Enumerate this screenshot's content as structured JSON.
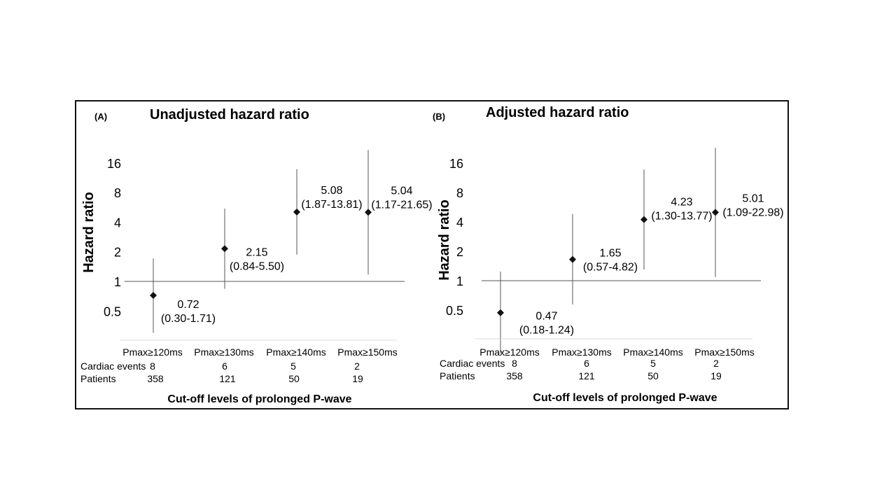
{
  "chart_data": [
    {
      "type": "scatter",
      "panel_label": "(A)",
      "title": "Unadjusted hazard ratio",
      "xlabel": "Cut-off levels of prolonged P-wave",
      "ylabel": "Hazard ratio",
      "y_scale": "log2",
      "ylim": [
        0.32,
        24
      ],
      "yticks": [
        0.5,
        1,
        2,
        4,
        8,
        16
      ],
      "yticklabels": [
        "0.5",
        "1",
        "2",
        "4",
        "8",
        "16"
      ],
      "reference_line": 1,
      "categories": [
        "Pmax≥120ms",
        "Pmax≥130ms",
        "Pmax≥140ms",
        "Pmax≥150ms"
      ],
      "hr": [
        0.72,
        2.15,
        5.08,
        5.04
      ],
      "ci_lower": [
        0.3,
        0.84,
        1.87,
        1.17
      ],
      "ci_upper": [
        1.71,
        5.5,
        13.81,
        21.65
      ],
      "hr_labels": [
        "0.72",
        "2.15",
        "5.08",
        "5.04"
      ],
      "ci_labels": [
        "(0.30-1.71)",
        "(0.84-5.50)",
        "(1.87-13.81)",
        "(1.17-21.65)"
      ],
      "table": {
        "rows": [
          {
            "label": "Cardiac events",
            "values": [
              "8",
              "6",
              "5",
              "2"
            ]
          },
          {
            "label": "Patients",
            "values": [
              "358",
              "121",
              "50",
              "19"
            ]
          }
        ]
      }
    },
    {
      "type": "scatter",
      "panel_label": "(B)",
      "title": "Adjusted hazard ratio",
      "xlabel": "Cut-off levels of prolonged P-wave",
      "ylabel": "Hazard ratio",
      "y_scale": "log2",
      "ylim": [
        0.32,
        24
      ],
      "yticks": [
        0.5,
        1,
        2,
        4,
        8,
        16
      ],
      "yticklabels": [
        "0.5",
        "1",
        "2",
        "4",
        "8",
        "16"
      ],
      "reference_line": 1,
      "categories": [
        "Pmax≥120ms",
        "Pmax≥130ms",
        "Pmax≥140ms",
        "Pmax≥150ms"
      ],
      "hr": [
        0.47,
        1.65,
        4.23,
        5.01
      ],
      "ci_lower": [
        0.18,
        0.57,
        1.3,
        1.09
      ],
      "ci_upper": [
        1.24,
        4.82,
        13.77,
        22.98
      ],
      "hr_labels": [
        "0.47",
        "1.65",
        "4.23",
        "5.01"
      ],
      "ci_labels": [
        "(0.18-1.24)",
        "(0.57-4.82)",
        "(1.30-13.77)",
        "(1.09-22.98)"
      ],
      "table": {
        "rows": [
          {
            "label": "Cardiac events",
            "values": [
              "8",
              "6",
              "5",
              "2"
            ]
          },
          {
            "label": "Patients",
            "values": [
              "358",
              "121",
              "50",
              "19"
            ]
          }
        ]
      }
    }
  ]
}
